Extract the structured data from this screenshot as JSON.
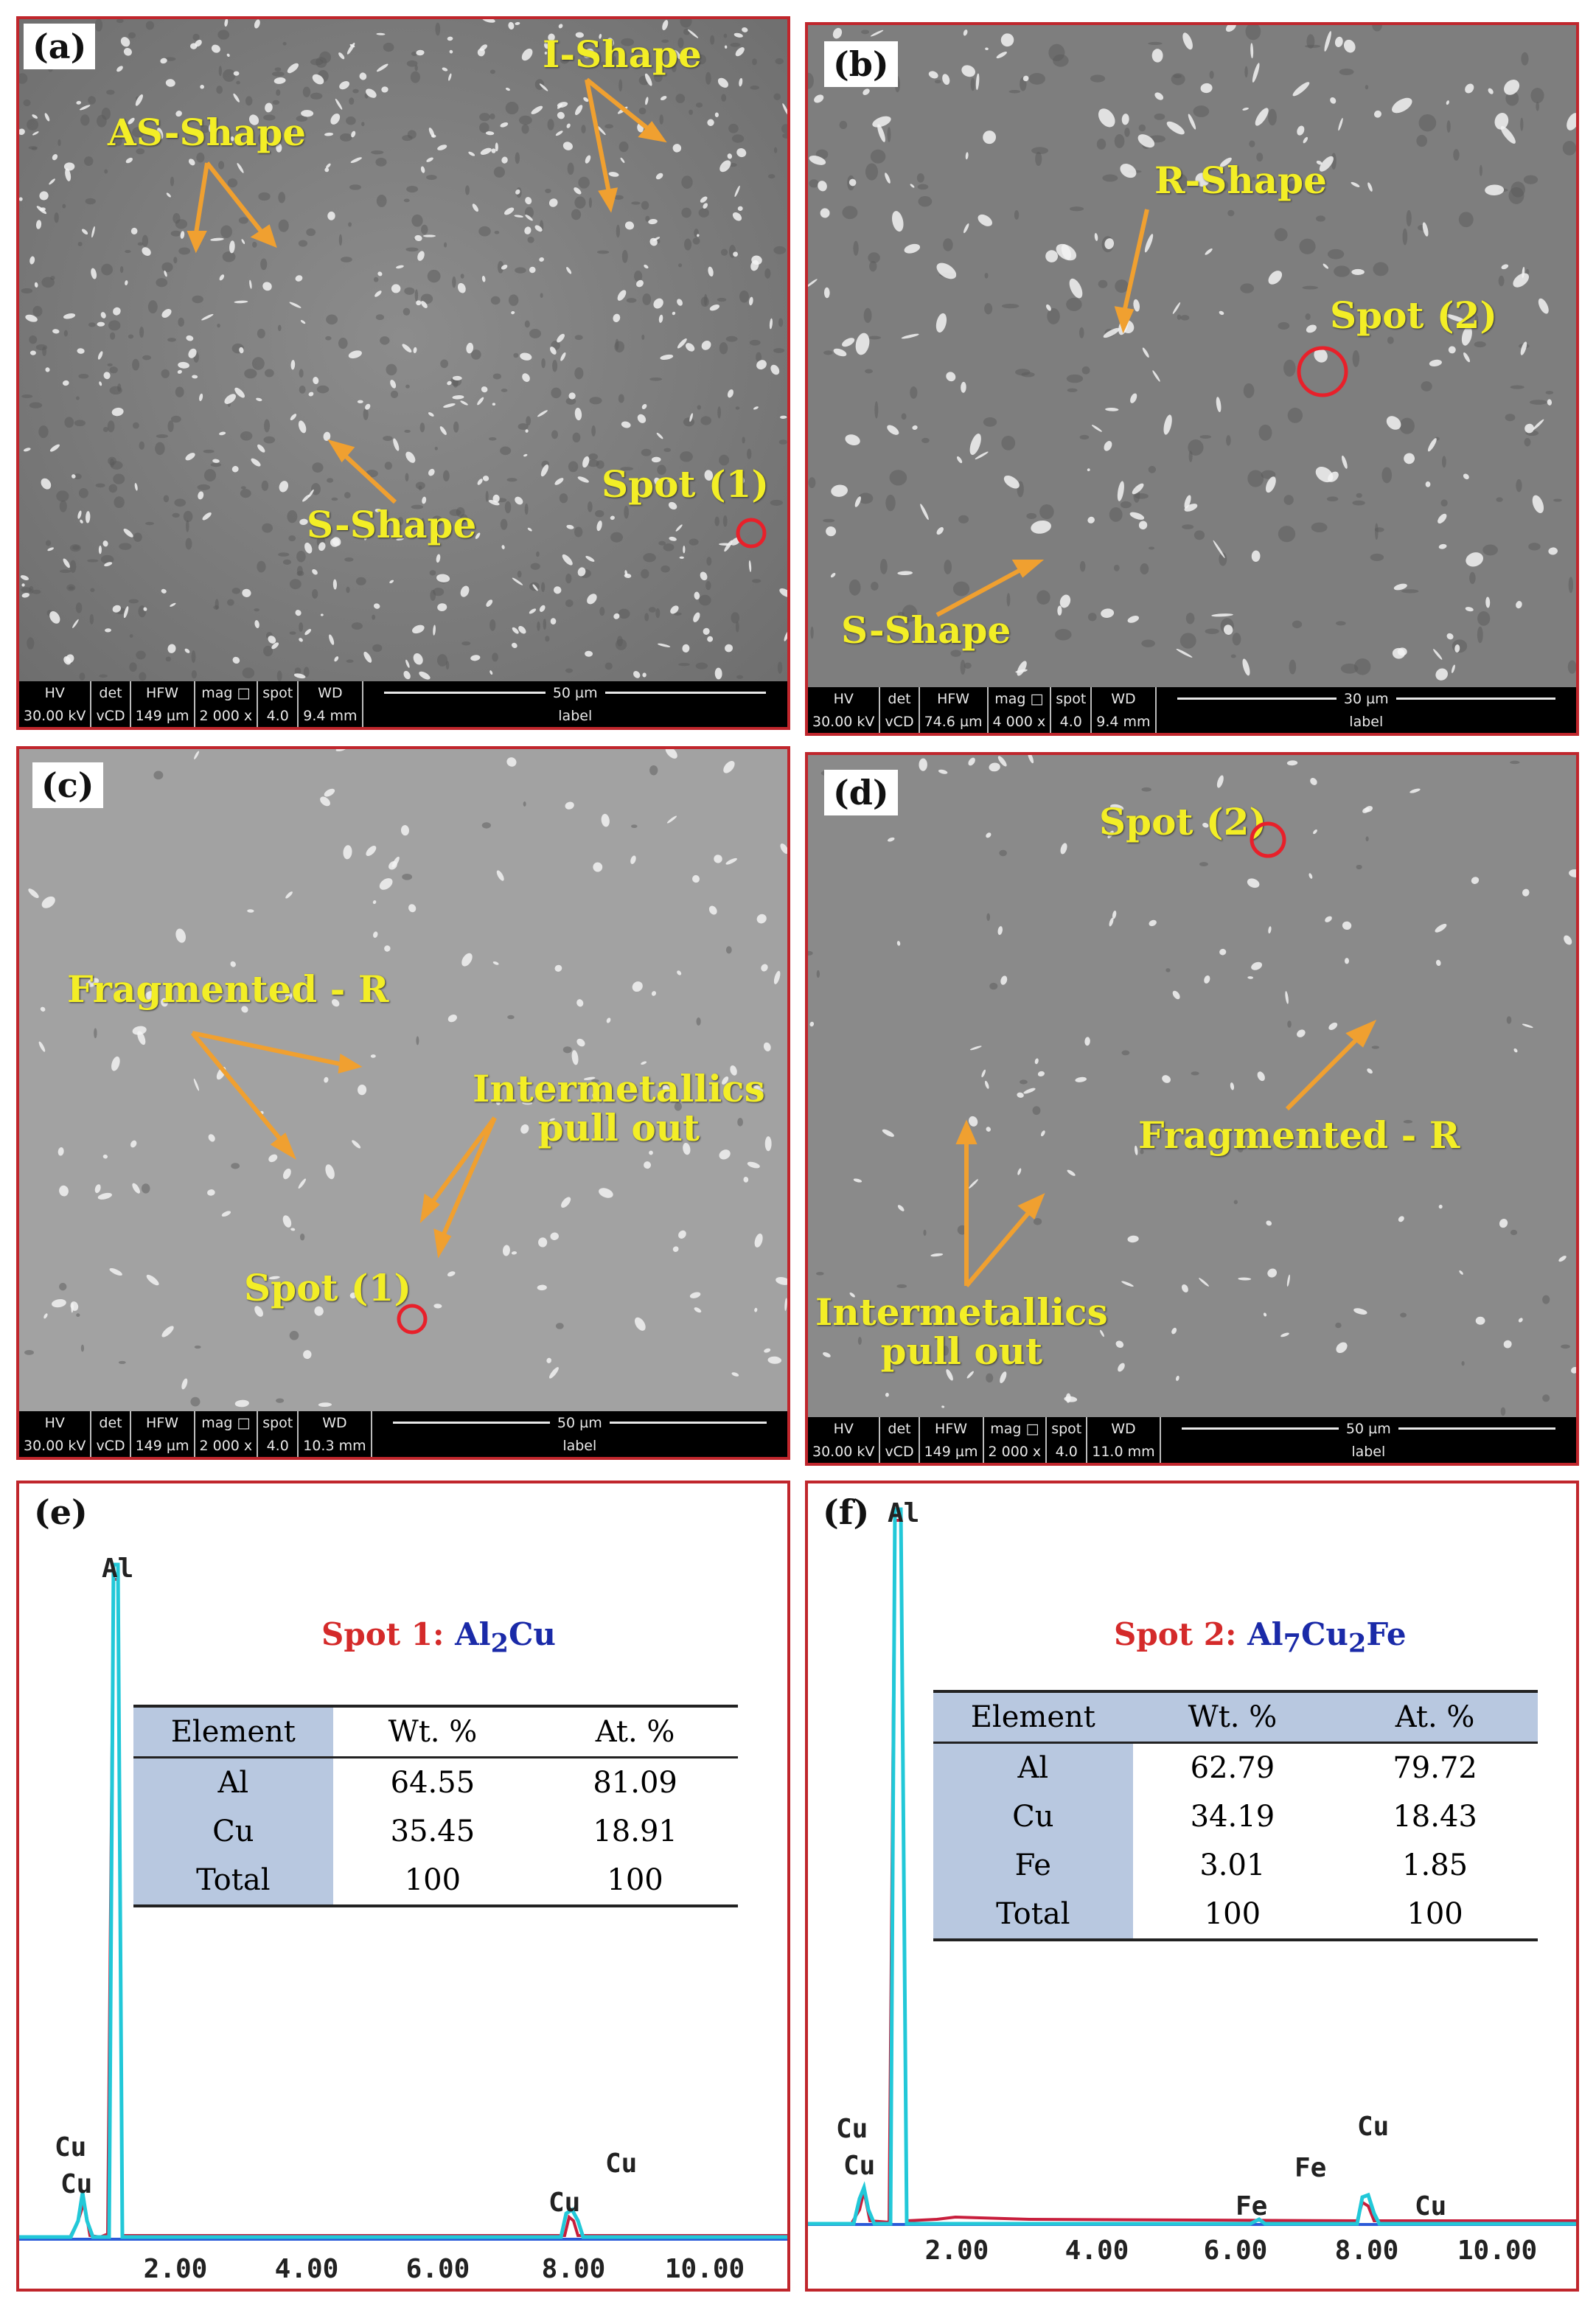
{
  "colors": {
    "border": "#c0262c",
    "annotation": "#f3ee26",
    "arrow": "#f0a030",
    "spot_circle": "#e8202a",
    "eds_red": "#d42a2a",
    "eds_blue": "#1a2aa8",
    "table_header": "#b8c8e0",
    "spectrum_cyan": "#22c8d8",
    "spectrum_red": "#c81e3c",
    "spectrum_blue": "#2a5ad8"
  },
  "panels": {
    "a": {
      "label": "(a)",
      "annotations": [
        "AS-Shape",
        "I-Shape",
        "S-Shape",
        "Spot (1)"
      ],
      "databar": {
        "hv": "HV",
        "hv_val": "30.00 kV",
        "det": "det",
        "det_val": "vCD",
        "hfw": "HFW",
        "hfw_val": "149 µm",
        "mag": "mag □",
        "mag_val": "2 000 x",
        "spot": "spot",
        "spot_val": "4.0",
        "wd": "WD",
        "wd_val": "9.4 mm",
        "scale": "50 µm",
        "scale_label": "label"
      }
    },
    "b": {
      "label": "(b)",
      "annotations": [
        "R-Shape",
        "Spot (2)",
        "S-Shape"
      ],
      "databar": {
        "hv": "HV",
        "hv_val": "30.00 kV",
        "det": "det",
        "det_val": "vCD",
        "hfw": "HFW",
        "hfw_val": "74.6 µm",
        "mag": "mag □",
        "mag_val": "4 000 x",
        "spot": "spot",
        "spot_val": "4.0",
        "wd": "WD",
        "wd_val": "9.4 mm",
        "scale": "30 µm",
        "scale_label": "label"
      }
    },
    "c": {
      "label": "(c)",
      "annotations": [
        "Fragmented - R",
        "Intermetallics",
        "pull out",
        "Spot (1)"
      ],
      "databar": {
        "hv": "HV",
        "hv_val": "30.00 kV",
        "det": "det",
        "det_val": "vCD",
        "hfw": "HFW",
        "hfw_val": "149 µm",
        "mag": "mag □",
        "mag_val": "2 000 x",
        "spot": "spot",
        "spot_val": "4.0",
        "wd": "WD",
        "wd_val": "10.3 mm",
        "scale": "50 µm",
        "scale_label": "label"
      }
    },
    "d": {
      "label": "(d)",
      "annotations": [
        "Spot (2)",
        "Fragmented - R",
        "Intermetallics",
        "pull out"
      ],
      "databar": {
        "hv": "HV",
        "hv_val": "30.00 kV",
        "det": "det",
        "det_val": "vCD",
        "hfw": "HFW",
        "hfw_val": "149 µm",
        "mag": "mag □",
        "mag_val": "2 000 x",
        "spot": "spot",
        "spot_val": "4.0",
        "wd": "WD",
        "wd_val": "11.0 mm",
        "scale": "50 µm",
        "scale_label": "label"
      }
    },
    "e": {
      "label": "(e)",
      "title_spot": "Spot 1: ",
      "title_phase": "Al2Cu",
      "table": {
        "headers": [
          "Element",
          "Wt. %",
          "At. %"
        ],
        "rows": [
          [
            "Al",
            "64.55",
            "81.09"
          ],
          [
            "Cu",
            "35.45",
            "18.91"
          ],
          [
            "Total",
            "100",
            "100"
          ]
        ]
      },
      "peak_labels": [
        "Al",
        "Cu",
        "Cu",
        "Cu",
        "Cu"
      ],
      "x_ticks": [
        "2.00",
        "4.00",
        "6.00",
        "8.00",
        "10.00"
      ]
    },
    "f": {
      "label": "(f)",
      "title_spot": "Spot 2: ",
      "title_phase": "Al7Cu2Fe",
      "table": {
        "headers": [
          "Element",
          "Wt. %",
          "At. %"
        ],
        "rows": [
          [
            "Al",
            "62.79",
            "79.72"
          ],
          [
            "Cu",
            "34.19",
            "18.43"
          ],
          [
            "Fe",
            "3.01",
            "1.85"
          ],
          [
            "Total",
            "100",
            "100"
          ]
        ]
      },
      "peak_labels": [
        "Al",
        "Cu",
        "Cu",
        "Fe",
        "Fe",
        "Cu",
        "Cu"
      ],
      "x_ticks": [
        "2.00",
        "4.00",
        "6.00",
        "8.00",
        "10.00"
      ]
    }
  }
}
